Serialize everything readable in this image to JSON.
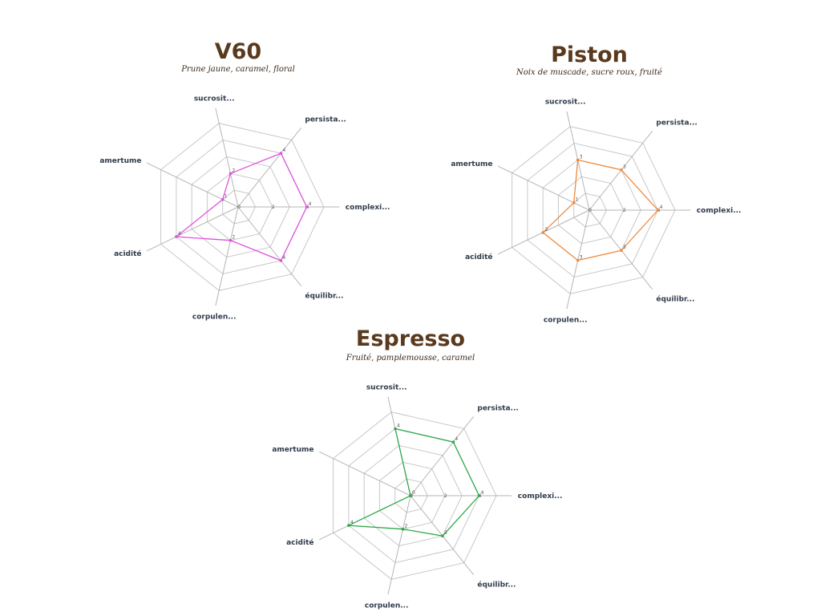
{
  "chart_data": [
    {
      "type": "radar",
      "title": "V60",
      "subtitle": "Prune jaune, caramel, floral",
      "axes": [
        "complexi...",
        "équilibr...",
        "corpulen...",
        "acidité",
        "amertume",
        "sucrosit...",
        "persista..."
      ],
      "values": [
        4,
        4,
        2,
        4,
        1,
        2,
        4
      ],
      "rmax": 5,
      "ticks": [
        0,
        2,
        4
      ],
      "color": "#e050e0"
    },
    {
      "type": "radar",
      "title": "Piston",
      "subtitle": "Noix de muscade, sucre roux, fruité",
      "axes": [
        "complexi...",
        "équilibr...",
        "corpulen...",
        "acidité",
        "amertume",
        "sucrosit...",
        "persista..."
      ],
      "values": [
        4,
        3,
        3,
        3,
        1,
        3,
        3
      ],
      "rmax": 5,
      "ticks": [
        0,
        2,
        4
      ],
      "color": "#f08a3c"
    },
    {
      "type": "radar",
      "title": "Espresso",
      "subtitle": "Fruité, pamplemousse, caramel",
      "axes": [
        "complexi...",
        "équilibr...",
        "corpulen...",
        "acidité",
        "amertume",
        "sucrosit...",
        "persista..."
      ],
      "values": [
        4,
        3,
        2,
        4,
        0,
        4,
        4
      ],
      "rmax": 5,
      "ticks": [
        0,
        2,
        4
      ],
      "color": "#2fa84a"
    }
  ]
}
